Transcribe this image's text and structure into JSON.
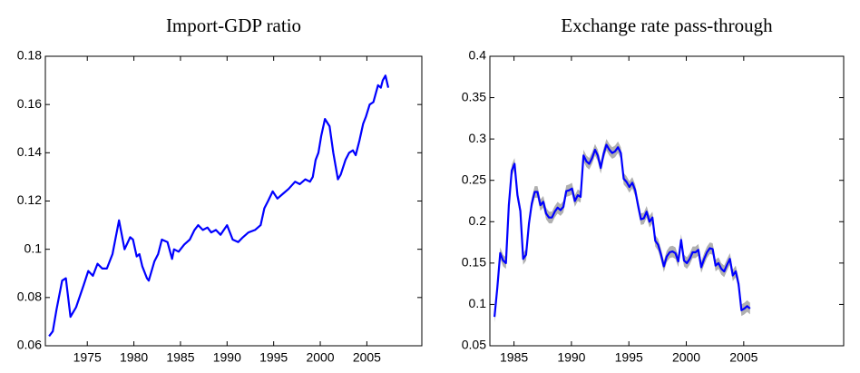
{
  "chart_data": [
    {
      "type": "line",
      "title": "Import-GDP ratio",
      "color": "#0000ff",
      "xlim": [
        1970.5,
        2010.9
      ],
      "xticks": [
        1975,
        1980,
        1985,
        1990,
        1995,
        2000,
        2005
      ],
      "ylim": [
        0.06,
        0.18
      ],
      "yticks": [
        0.06,
        0.08,
        0.1,
        0.12,
        0.14,
        0.16,
        0.18
      ],
      "x": [
        1970.9,
        1971.3,
        1971.7,
        1972.3,
        1972.7,
        1973.2,
        1973.8,
        1974.6,
        1975.1,
        1975.6,
        1976.1,
        1976.6,
        1977.1,
        1977.7,
        1978.4,
        1979.0,
        1979.6,
        1979.9,
        1980.3,
        1980.6,
        1980.9,
        1981.4,
        1981.6,
        1982.2,
        1982.6,
        1983.0,
        1983.6,
        1984.1,
        1984.3,
        1984.8,
        1985.4,
        1986.0,
        1986.5,
        1986.9,
        1987.4,
        1987.9,
        1988.3,
        1988.8,
        1989.3,
        1990.0,
        1990.6,
        1991.2,
        1991.7,
        1992.3,
        1993.0,
        1993.6,
        1994.0,
        1994.4,
        1994.9,
        1995.4,
        1996.0,
        1996.6,
        1997.3,
        1997.8,
        1998.4,
        1998.9,
        1999.2,
        1999.5,
        1999.8,
        2000.1,
        2000.5,
        2001.0,
        2001.4,
        2001.9,
        2002.2,
        2002.7,
        2003.1,
        2003.5,
        2003.8,
        2004.2,
        2004.6,
        2004.9,
        2005.3,
        2005.7,
        2006.2,
        2006.5,
        2006.7,
        2007.0,
        2007.3
      ],
      "values": [
        0.064,
        0.066,
        0.075,
        0.087,
        0.088,
        0.072,
        0.076,
        0.085,
        0.091,
        0.089,
        0.094,
        0.092,
        0.092,
        0.098,
        0.112,
        0.1,
        0.105,
        0.104,
        0.097,
        0.098,
        0.093,
        0.088,
        0.087,
        0.095,
        0.098,
        0.104,
        0.103,
        0.096,
        0.1,
        0.099,
        0.102,
        0.104,
        0.108,
        0.11,
        0.108,
        0.109,
        0.107,
        0.108,
        0.106,
        0.11,
        0.104,
        0.103,
        0.105,
        0.107,
        0.108,
        0.11,
        0.117,
        0.12,
        0.124,
        0.121,
        0.123,
        0.125,
        0.128,
        0.127,
        0.129,
        0.128,
        0.13,
        0.137,
        0.14,
        0.147,
        0.154,
        0.151,
        0.14,
        0.129,
        0.131,
        0.137,
        0.14,
        0.141,
        0.139,
        0.145,
        0.152,
        0.155,
        0.16,
        0.161,
        0.168,
        0.167,
        0.17,
        0.172,
        0.167
      ]
    },
    {
      "type": "line",
      "title": "Exchange rate pass-through",
      "color": "#0000ff",
      "band": 0.007,
      "band_color": "#b0b0b0",
      "xlim": [
        1982.9,
        2013.7
      ],
      "xticks": [
        1985,
        1990,
        1995,
        2000,
        2005
      ],
      "ylim": [
        0.05,
        0.4
      ],
      "yticks": [
        0.05,
        0.1,
        0.15,
        0.2,
        0.25,
        0.3,
        0.35,
        0.4
      ],
      "x": [
        1983.3,
        1983.55,
        1983.8,
        1984.05,
        1984.3,
        1984.55,
        1984.8,
        1985.05,
        1985.3,
        1985.55,
        1985.8,
        1986.05,
        1986.3,
        1986.55,
        1986.8,
        1987.05,
        1987.3,
        1987.55,
        1987.8,
        1988.05,
        1988.3,
        1988.55,
        1988.8,
        1989.05,
        1989.3,
        1989.55,
        1989.8,
        1990.05,
        1990.3,
        1990.55,
        1990.8,
        1991.05,
        1991.3,
        1991.55,
        1991.8,
        1992.05,
        1992.3,
        1992.55,
        1992.8,
        1993.05,
        1993.3,
        1993.55,
        1993.8,
        1994.05,
        1994.3,
        1994.55,
        1994.8,
        1995.05,
        1995.3,
        1995.55,
        1995.8,
        1996.05,
        1996.3,
        1996.55,
        1996.8,
        1997.05,
        1997.3,
        1997.55,
        1997.8,
        1998.05,
        1998.3,
        1998.55,
        1998.8,
        1999.05,
        1999.3,
        1999.55,
        1999.8,
        2000.05,
        2000.3,
        2000.55,
        2000.8,
        2001.05,
        2001.3,
        2001.55,
        2001.8,
        2002.05,
        2002.3,
        2002.55,
        2002.8,
        2003.05,
        2003.3,
        2003.55,
        2003.8,
        2004.05,
        2004.3,
        2004.55,
        2004.8,
        2005.05,
        2005.3,
        2005.55
      ],
      "values": [
        0.085,
        0.12,
        0.162,
        0.153,
        0.15,
        0.22,
        0.262,
        0.27,
        0.232,
        0.213,
        0.155,
        0.16,
        0.198,
        0.222,
        0.236,
        0.236,
        0.22,
        0.224,
        0.21,
        0.205,
        0.205,
        0.212,
        0.217,
        0.214,
        0.218,
        0.237,
        0.238,
        0.24,
        0.225,
        0.232,
        0.23,
        0.28,
        0.273,
        0.27,
        0.277,
        0.287,
        0.28,
        0.265,
        0.282,
        0.293,
        0.287,
        0.283,
        0.285,
        0.29,
        0.283,
        0.252,
        0.248,
        0.242,
        0.247,
        0.238,
        0.22,
        0.203,
        0.204,
        0.212,
        0.2,
        0.205,
        0.177,
        0.172,
        0.16,
        0.146,
        0.158,
        0.163,
        0.164,
        0.162,
        0.152,
        0.178,
        0.153,
        0.15,
        0.155,
        0.163,
        0.163,
        0.166,
        0.145,
        0.155,
        0.163,
        0.168,
        0.167,
        0.147,
        0.15,
        0.143,
        0.14,
        0.148,
        0.155,
        0.135,
        0.14,
        0.125,
        0.093,
        0.095,
        0.098,
        0.095
      ]
    }
  ]
}
